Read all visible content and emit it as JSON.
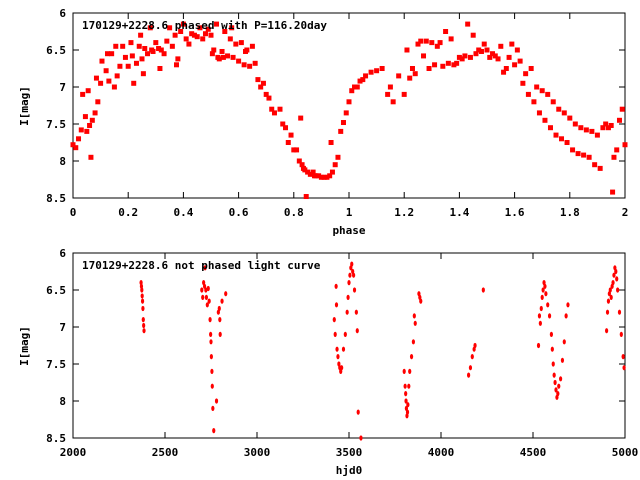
{
  "chart_data": [
    {
      "type": "scatter",
      "title": "170129+2228.6 phased with P=116.20day",
      "xlabel": "phase",
      "ylabel": "I[mag]",
      "xlim": [
        0,
        2
      ],
      "ylim": [
        8.5,
        6
      ],
      "y_inverted": true,
      "xticks": [
        0,
        0.2,
        0.4,
        0.6,
        0.8,
        1,
        1.2,
        1.4,
        1.6,
        1.8,
        2
      ],
      "xtick_labels": [
        "0",
        "0.2",
        "0.4",
        "0.6",
        "0.8",
        "1",
        "1.2",
        "1.4",
        "1.6",
        "1.8",
        "2"
      ],
      "yticks": [
        6,
        6.5,
        7,
        7.5,
        8,
        8.5
      ],
      "ytick_labels": [
        "6",
        "6.5",
        "7",
        "7.5",
        "8",
        "8.5"
      ],
      "marker_color": "#ff0000",
      "grid": false,
      "points": [
        [
          0.0,
          7.78
        ],
        [
          0.01,
          7.82
        ],
        [
          0.02,
          7.7
        ],
        [
          0.03,
          7.58
        ],
        [
          0.035,
          7.1
        ],
        [
          0.045,
          7.4
        ],
        [
          0.05,
          7.6
        ],
        [
          0.055,
          7.05
        ],
        [
          0.06,
          7.52
        ],
        [
          0.065,
          7.95
        ],
        [
          0.07,
          7.45
        ],
        [
          0.08,
          7.35
        ],
        [
          0.085,
          6.88
        ],
        [
          0.09,
          7.2
        ],
        [
          0.1,
          6.95
        ],
        [
          0.105,
          6.65
        ],
        [
          0.12,
          6.78
        ],
        [
          0.125,
          6.55
        ],
        [
          0.13,
          6.92
        ],
        [
          0.14,
          6.55
        ],
        [
          0.15,
          7.0
        ],
        [
          0.155,
          6.45
        ],
        [
          0.16,
          6.85
        ],
        [
          0.17,
          6.72
        ],
        [
          0.18,
          6.45
        ],
        [
          0.19,
          6.6
        ],
        [
          0.2,
          6.72
        ],
        [
          0.21,
          6.4
        ],
        [
          0.215,
          6.58
        ],
        [
          0.22,
          6.95
        ],
        [
          0.23,
          6.68
        ],
        [
          0.24,
          6.45
        ],
        [
          0.245,
          6.3
        ],
        [
          0.25,
          6.62
        ],
        [
          0.255,
          6.82
        ],
        [
          0.26,
          6.48
        ],
        [
          0.27,
          6.55
        ],
        [
          0.28,
          6.2
        ],
        [
          0.285,
          6.5
        ],
        [
          0.29,
          6.52
        ],
        [
          0.3,
          6.4
        ],
        [
          0.31,
          6.48
        ],
        [
          0.315,
          6.75
        ],
        [
          0.32,
          6.5
        ],
        [
          0.33,
          6.55
        ],
        [
          0.34,
          6.38
        ],
        [
          0.35,
          6.2
        ],
        [
          0.36,
          6.45
        ],
        [
          0.37,
          6.3
        ],
        [
          0.375,
          6.7
        ],
        [
          0.38,
          6.62
        ],
        [
          0.39,
          6.25
        ],
        [
          0.4,
          6.15
        ],
        [
          0.41,
          6.35
        ],
        [
          0.42,
          6.42
        ],
        [
          0.43,
          6.28
        ],
        [
          0.44,
          6.3
        ],
        [
          0.45,
          6.32
        ],
        [
          0.46,
          6.2
        ],
        [
          0.47,
          6.35
        ],
        [
          0.48,
          6.28
        ],
        [
          0.49,
          6.22
        ],
        [
          0.5,
          6.3
        ],
        [
          0.505,
          6.55
        ],
        [
          0.51,
          6.5
        ],
        [
          0.52,
          6.15
        ],
        [
          0.525,
          6.6
        ],
        [
          0.53,
          6.62
        ],
        [
          0.54,
          6.52
        ],
        [
          0.545,
          6.6
        ],
        [
          0.55,
          6.25
        ],
        [
          0.56,
          6.58
        ],
        [
          0.57,
          6.35
        ],
        [
          0.575,
          6.2
        ],
        [
          0.58,
          6.6
        ],
        [
          0.59,
          6.42
        ],
        [
          0.6,
          6.65
        ],
        [
          0.61,
          6.4
        ],
        [
          0.62,
          6.7
        ],
        [
          0.625,
          6.52
        ],
        [
          0.63,
          6.5
        ],
        [
          0.64,
          6.72
        ],
        [
          0.65,
          6.45
        ],
        [
          0.66,
          6.68
        ],
        [
          0.67,
          6.9
        ],
        [
          0.68,
          7.0
        ],
        [
          0.69,
          6.95
        ],
        [
          0.7,
          7.1
        ],
        [
          0.71,
          7.15
        ],
        [
          0.72,
          7.3
        ],
        [
          0.73,
          7.35
        ],
        [
          0.75,
          7.3
        ],
        [
          0.76,
          7.5
        ],
        [
          0.77,
          7.55
        ],
        [
          0.78,
          7.75
        ],
        [
          0.79,
          7.65
        ],
        [
          0.8,
          7.85
        ],
        [
          0.81,
          7.85
        ],
        [
          0.82,
          8.0
        ],
        [
          0.825,
          7.42
        ],
        [
          0.83,
          8.05
        ],
        [
          0.835,
          8.1
        ],
        [
          0.84,
          8.12
        ],
        [
          0.845,
          8.48
        ],
        [
          0.85,
          8.15
        ],
        [
          0.86,
          8.18
        ],
        [
          0.87,
          8.15
        ],
        [
          0.875,
          8.2
        ],
        [
          0.88,
          8.2
        ],
        [
          0.89,
          8.2
        ],
        [
          0.9,
          8.22
        ],
        [
          0.91,
          8.22
        ],
        [
          0.92,
          8.22
        ],
        [
          0.93,
          8.2
        ],
        [
          0.935,
          7.75
        ],
        [
          0.94,
          8.15
        ],
        [
          0.95,
          8.05
        ],
        [
          0.96,
          7.95
        ],
        [
          0.97,
          7.6
        ],
        [
          0.98,
          7.48
        ],
        [
          0.99,
          7.35
        ],
        [
          1.0,
          7.2
        ],
        [
          1.01,
          7.05
        ],
        [
          1.02,
          7.0
        ],
        [
          1.03,
          7.0
        ],
        [
          1.04,
          6.92
        ],
        [
          1.05,
          6.9
        ],
        [
          1.06,
          6.85
        ],
        [
          1.08,
          6.8
        ],
        [
          1.1,
          6.78
        ],
        [
          1.12,
          6.75
        ],
        [
          1.14,
          7.1
        ],
        [
          1.15,
          7.0
        ],
        [
          1.16,
          7.2
        ],
        [
          1.18,
          6.85
        ],
        [
          1.2,
          7.1
        ],
        [
          1.21,
          6.5
        ],
        [
          1.22,
          6.88
        ],
        [
          1.23,
          6.75
        ],
        [
          1.24,
          6.82
        ],
        [
          1.25,
          6.42
        ],
        [
          1.26,
          6.38
        ],
        [
          1.27,
          6.58
        ],
        [
          1.28,
          6.38
        ],
        [
          1.29,
          6.75
        ],
        [
          1.3,
          6.4
        ],
        [
          1.31,
          6.7
        ],
        [
          1.32,
          6.45
        ],
        [
          1.33,
          6.4
        ],
        [
          1.34,
          6.72
        ],
        [
          1.35,
          6.25
        ],
        [
          1.36,
          6.68
        ],
        [
          1.37,
          6.35
        ],
        [
          1.38,
          6.7
        ],
        [
          1.39,
          6.68
        ],
        [
          1.4,
          6.6
        ],
        [
          1.41,
          6.62
        ],
        [
          1.42,
          6.58
        ],
        [
          1.43,
          6.15
        ],
        [
          1.44,
          6.6
        ],
        [
          1.45,
          6.3
        ],
        [
          1.46,
          6.55
        ],
        [
          1.47,
          6.5
        ],
        [
          1.48,
          6.52
        ],
        [
          1.49,
          6.42
        ],
        [
          1.5,
          6.5
        ],
        [
          1.51,
          6.6
        ],
        [
          1.52,
          6.55
        ],
        [
          1.53,
          6.58
        ],
        [
          1.54,
          6.62
        ],
        [
          1.55,
          6.45
        ],
        [
          1.56,
          6.8
        ],
        [
          1.57,
          6.75
        ],
        [
          1.58,
          6.6
        ],
        [
          1.59,
          6.42
        ],
        [
          1.6,
          6.7
        ],
        [
          1.61,
          6.5
        ],
        [
          1.62,
          6.65
        ],
        [
          1.63,
          6.95
        ],
        [
          1.64,
          6.82
        ],
        [
          1.65,
          7.1
        ],
        [
          1.66,
          6.75
        ],
        [
          1.67,
          7.2
        ],
        [
          1.68,
          7.0
        ],
        [
          1.69,
          7.35
        ],
        [
          1.7,
          7.05
        ],
        [
          1.71,
          7.45
        ],
        [
          1.72,
          7.1
        ],
        [
          1.73,
          7.55
        ],
        [
          1.74,
          7.2
        ],
        [
          1.75,
          7.65
        ],
        [
          1.76,
          7.3
        ],
        [
          1.77,
          7.7
        ],
        [
          1.78,
          7.35
        ],
        [
          1.79,
          7.75
        ],
        [
          1.8,
          7.42
        ],
        [
          1.81,
          7.85
        ],
        [
          1.82,
          7.5
        ],
        [
          1.83,
          7.9
        ],
        [
          1.84,
          7.55
        ],
        [
          1.85,
          7.92
        ],
        [
          1.86,
          7.58
        ],
        [
          1.87,
          7.95
        ],
        [
          1.88,
          7.6
        ],
        [
          1.89,
          8.05
        ],
        [
          1.9,
          7.65
        ],
        [
          1.91,
          8.1
        ],
        [
          1.92,
          7.55
        ],
        [
          1.93,
          7.5
        ],
        [
          1.94,
          7.55
        ],
        [
          1.95,
          7.52
        ],
        [
          1.955,
          8.42
        ],
        [
          1.96,
          7.95
        ],
        [
          1.97,
          7.85
        ],
        [
          1.98,
          7.45
        ],
        [
          1.99,
          7.3
        ],
        [
          2.0,
          7.78
        ]
      ]
    },
    {
      "type": "scatter",
      "title": "170129+2228.6 not phased light curve",
      "xlabel": "hjd0",
      "ylabel": "I[mag]",
      "xlim": [
        2000,
        5000
      ],
      "ylim": [
        8.5,
        6
      ],
      "y_inverted": true,
      "xticks": [
        2000,
        2500,
        3000,
        3500,
        4000,
        4500,
        5000
      ],
      "xtick_labels": [
        "2000",
        "2500",
        "3000",
        "3500",
        "4000",
        "4500",
        "5000"
      ],
      "yticks": [
        6,
        6.5,
        7,
        7.5,
        8,
        8.5
      ],
      "ytick_labels": [
        "6",
        "6.5",
        "7",
        "7.5",
        "8",
        "8.5"
      ],
      "marker_color": "#ff0000",
      "grid": false,
      "points": [
        [
          2370,
          6.4
        ],
        [
          2372,
          6.45
        ],
        [
          2374,
          6.5
        ],
        [
          2376,
          6.58
        ],
        [
          2378,
          6.65
        ],
        [
          2380,
          6.75
        ],
        [
          2382,
          6.9
        ],
        [
          2384,
          6.98
        ],
        [
          2386,
          7.05
        ],
        [
          2700,
          6.5
        ],
        [
          2705,
          6.6
        ],
        [
          2710,
          6.4
        ],
        [
          2715,
          6.45
        ],
        [
          2718,
          6.2
        ],
        [
          2722,
          6.5
        ],
        [
          2725,
          6.6
        ],
        [
          2730,
          6.7
        ],
        [
          2735,
          6.48
        ],
        [
          2740,
          6.65
        ],
        [
          2745,
          6.9
        ],
        [
          2748,
          7.1
        ],
        [
          2750,
          7.2
        ],
        [
          2752,
          7.4
        ],
        [
          2755,
          7.6
        ],
        [
          2757,
          7.8
        ],
        [
          2760,
          8.1
        ],
        [
          2765,
          8.4
        ],
        [
          2780,
          8.0
        ],
        [
          2790,
          6.8
        ],
        [
          2795,
          6.75
        ],
        [
          2798,
          6.9
        ],
        [
          2800,
          7.1
        ],
        [
          2810,
          6.65
        ],
        [
          2830,
          6.55
        ],
        [
          3420,
          6.9
        ],
        [
          3425,
          7.1
        ],
        [
          3430,
          6.45
        ],
        [
          3432,
          6.7
        ],
        [
          3435,
          7.3
        ],
        [
          3440,
          7.4
        ],
        [
          3445,
          7.5
        ],
        [
          3450,
          7.55
        ],
        [
          3455,
          7.6
        ],
        [
          3460,
          7.55
        ],
        [
          3470,
          7.3
        ],
        [
          3480,
          7.1
        ],
        [
          3490,
          6.8
        ],
        [
          3495,
          6.6
        ],
        [
          3500,
          6.4
        ],
        [
          3505,
          6.3
        ],
        [
          3510,
          6.2
        ],
        [
          3515,
          6.15
        ],
        [
          3520,
          6.25
        ],
        [
          3525,
          6.3
        ],
        [
          3530,
          6.5
        ],
        [
          3540,
          6.8
        ],
        [
          3545,
          7.05
        ],
        [
          3550,
          8.15
        ],
        [
          3565,
          8.5
        ],
        [
          3800,
          7.6
        ],
        [
          3805,
          7.8
        ],
        [
          3808,
          7.9
        ],
        [
          3810,
          8.0
        ],
        [
          3812,
          8.1
        ],
        [
          3815,
          8.2
        ],
        [
          3818,
          8.15
        ],
        [
          3820,
          8.05
        ],
        [
          3825,
          7.8
        ],
        [
          3830,
          7.6
        ],
        [
          3840,
          7.4
        ],
        [
          3850,
          7.2
        ],
        [
          3855,
          6.85
        ],
        [
          3860,
          6.95
        ],
        [
          3880,
          6.55
        ],
        [
          3885,
          6.6
        ],
        [
          3890,
          6.65
        ],
        [
          4150,
          7.65
        ],
        [
          4160,
          7.55
        ],
        [
          4170,
          7.4
        ],
        [
          4180,
          7.3
        ],
        [
          4185,
          7.25
        ],
        [
          4230,
          6.5
        ],
        [
          4530,
          7.25
        ],
        [
          4535,
          6.85
        ],
        [
          4540,
          6.95
        ],
        [
          4545,
          6.75
        ],
        [
          4550,
          6.6
        ],
        [
          4555,
          6.5
        ],
        [
          4560,
          6.4
        ],
        [
          4565,
          6.45
        ],
        [
          4570,
          6.55
        ],
        [
          4580,
          6.7
        ],
        [
          4590,
          6.85
        ],
        [
          4600,
          7.1
        ],
        [
          4605,
          7.3
        ],
        [
          4610,
          7.5
        ],
        [
          4615,
          7.65
        ],
        [
          4620,
          7.75
        ],
        [
          4625,
          7.85
        ],
        [
          4630,
          7.95
        ],
        [
          4635,
          7.9
        ],
        [
          4640,
          7.8
        ],
        [
          4650,
          7.7
        ],
        [
          4660,
          7.45
        ],
        [
          4670,
          7.2
        ],
        [
          4680,
          6.85
        ],
        [
          4690,
          6.7
        ],
        [
          4900,
          7.05
        ],
        [
          4905,
          6.8
        ],
        [
          4910,
          6.65
        ],
        [
          4915,
          6.55
        ],
        [
          4920,
          6.5
        ],
        [
          4925,
          6.6
        ],
        [
          4930,
          6.45
        ],
        [
          4935,
          6.4
        ],
        [
          4940,
          6.3
        ],
        [
          4945,
          6.2
        ],
        [
          4950,
          6.25
        ],
        [
          4955,
          6.35
        ],
        [
          4960,
          6.5
        ],
        [
          4970,
          6.8
        ],
        [
          4980,
          7.1
        ],
        [
          4990,
          7.4
        ],
        [
          4995,
          7.55
        ]
      ]
    }
  ]
}
